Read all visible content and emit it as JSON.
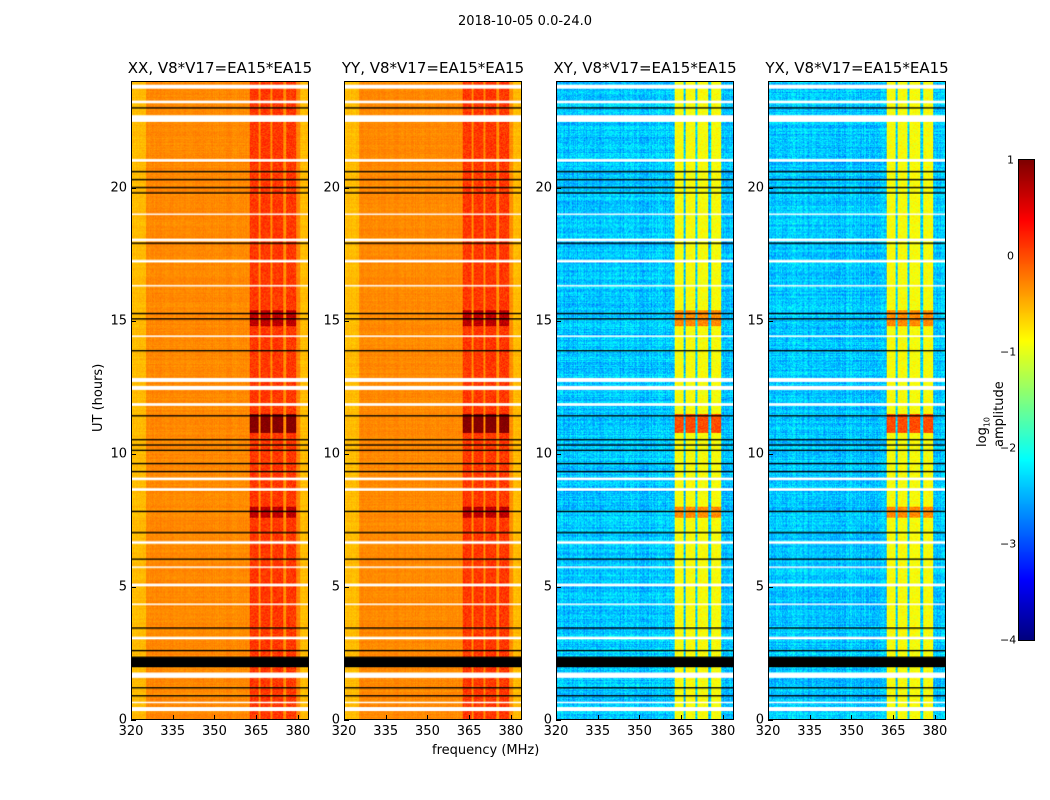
{
  "chart_data": {
    "type": "heatmap",
    "title": "2018-10-05 0.0-24.0",
    "xlabel": "frequency (MHz)",
    "ylabel": "UT (hours)",
    "xlim": [
      320,
      384
    ],
    "ylim": [
      0,
      24
    ],
    "xticks": [
      "320",
      "335",
      "350",
      "365",
      "380"
    ],
    "yticks": [
      "0",
      "5",
      "10",
      "15",
      "20"
    ],
    "colorbar": {
      "label": "log",
      "label_sub": "10",
      "label_rest": " amplitude",
      "range": [
        -4,
        1
      ],
      "ticks": [
        "1",
        "0",
        "−1",
        "−2",
        "−3",
        "−4"
      ],
      "colormap": "jet"
    },
    "panels": [
      {
        "title": "XX, V8*V17=EA15*EA15",
        "baseline_log10": -0.3,
        "rfi_log10": 0.1,
        "noise": 0.12
      },
      {
        "title": "YY, V8*V17=EA15*EA15",
        "baseline_log10": -0.3,
        "rfi_log10": 0.1,
        "noise": 0.12
      },
      {
        "title": "XY, V8*V17=EA15*EA15",
        "baseline_log10": -2.4,
        "rfi_log10": -0.9,
        "noise": 0.45
      },
      {
        "title": "YX, V8*V17=EA15*EA15",
        "baseline_log10": -2.4,
        "rfi_log10": -0.9,
        "noise": 0.45
      }
    ],
    "rfi_channels_mhz": [
      [
        362.5,
        366
      ],
      [
        366.5,
        370
      ],
      [
        371,
        375
      ],
      [
        376,
        379.5
      ]
    ],
    "strong_events_hours": [
      [
        10.8,
        11.5,
        0.9
      ],
      [
        7.6,
        8.0,
        0.6
      ],
      [
        14.8,
        15.4,
        0.6
      ]
    ],
    "flagged_white_hours": [
      [
        0.3,
        0.45
      ],
      [
        0.6,
        0.65
      ],
      [
        1.55,
        1.75
      ],
      [
        3.0,
        3.1
      ],
      [
        4.3,
        4.35
      ],
      [
        5.0,
        5.1
      ],
      [
        5.7,
        5.75
      ],
      [
        6.6,
        6.7
      ],
      [
        8.6,
        8.7
      ],
      [
        9.0,
        9.1
      ],
      [
        11.8,
        11.9
      ],
      [
        12.4,
        12.55
      ],
      [
        12.7,
        12.85
      ],
      [
        14.4,
        14.45
      ],
      [
        16.3,
        16.35
      ],
      [
        17.2,
        17.3
      ],
      [
        18.0,
        18.1
      ],
      [
        19.0,
        19.05
      ],
      [
        21.0,
        21.1
      ],
      [
        22.5,
        22.75
      ],
      [
        23.2,
        23.3
      ],
      [
        23.75,
        23.9
      ]
    ],
    "flagged_black_hours": [
      [
        1.95,
        2.35
      ],
      [
        0.85,
        0.9
      ],
      [
        1.15,
        1.2
      ],
      [
        2.55,
        2.6
      ],
      [
        3.4,
        3.45
      ],
      [
        6.0,
        6.05
      ],
      [
        7.0,
        7.05
      ],
      [
        7.8,
        7.85
      ],
      [
        9.3,
        9.35
      ],
      [
        9.6,
        9.65
      ],
      [
        10.1,
        10.15
      ],
      [
        10.3,
        10.35
      ],
      [
        10.5,
        10.55
      ],
      [
        11.4,
        11.45
      ],
      [
        13.85,
        13.9
      ],
      [
        15.05,
        15.1
      ],
      [
        15.25,
        15.3
      ],
      [
        17.9,
        17.95
      ],
      [
        19.8,
        19.85
      ],
      [
        20.0,
        20.05
      ],
      [
        20.3,
        20.35
      ],
      [
        20.6,
        20.65
      ],
      [
        23.0,
        23.05
      ]
    ]
  }
}
